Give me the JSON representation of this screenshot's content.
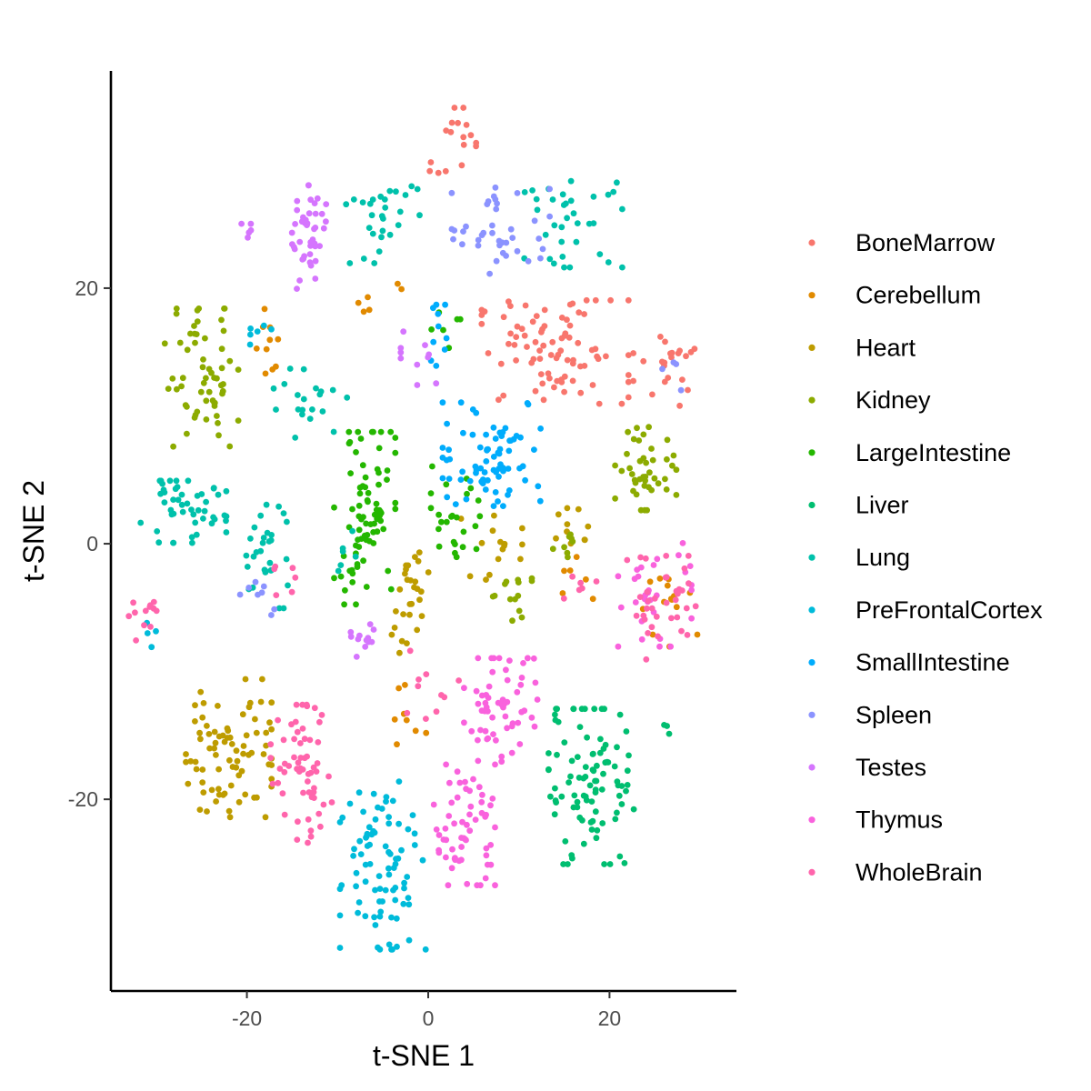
{
  "chart_data": {
    "type": "scatter",
    "title": "",
    "xlabel": "t-SNE 1",
    "ylabel": "t-SNE 2",
    "xlim": [
      -35,
      34
    ],
    "ylim": [
      -35,
      37
    ],
    "xticks": [
      -20,
      0,
      20
    ],
    "yticks": [
      -20,
      0,
      20
    ],
    "xtick_labels": [
      "-20",
      "0",
      "20"
    ],
    "ytick_labels": [
      "-20",
      "0",
      "20"
    ],
    "grid": false,
    "legend_position": "right",
    "series": [
      {
        "name": "BoneMarrow",
        "color": "#F8766D",
        "clusters": [
          {
            "cx": 14,
            "cy": 15,
            "sx": 6,
            "sy": 3,
            "n": 85
          },
          {
            "cx": 26,
            "cy": 13.5,
            "sx": 2.5,
            "sy": 2,
            "n": 22
          },
          {
            "cx": 4,
            "cy": 32.5,
            "sx": 1.5,
            "sy": 1.2,
            "n": 12
          },
          {
            "cx": 1,
            "cy": 29,
            "sx": 2,
            "sy": 1.5,
            "n": 5
          }
        ]
      },
      {
        "name": "Cerebellum",
        "color": "#E18A00",
        "clusters": [
          {
            "cx": -17,
            "cy": 16,
            "sx": 1.5,
            "sy": 2,
            "n": 10
          },
          {
            "cx": -5,
            "cy": 19,
            "sx": 2,
            "sy": 1.5,
            "n": 6
          },
          {
            "cx": 27,
            "cy": -4,
            "sx": 2.5,
            "sy": 3,
            "n": 14
          },
          {
            "cx": 16,
            "cy": -3,
            "sx": 2,
            "sy": 1.5,
            "n": 6
          },
          {
            "cx": -2,
            "cy": -13,
            "sx": 2,
            "sy": 2,
            "n": 8
          }
        ]
      },
      {
        "name": "Heart",
        "color": "#BE9C00",
        "clusters": [
          {
            "cx": -22,
            "cy": -16,
            "sx": 3.5,
            "sy": 4,
            "n": 80
          },
          {
            "cx": -2,
            "cy": -4.5,
            "sx": 1.5,
            "sy": 3,
            "n": 28
          },
          {
            "cx": 7,
            "cy": -0.5,
            "sx": 2.5,
            "sy": 2,
            "n": 15
          },
          {
            "cx": 16,
            "cy": 1.5,
            "sx": 1.5,
            "sy": 1.5,
            "n": 10
          }
        ]
      },
      {
        "name": "Kidney",
        "color": "#8CAB00",
        "clusters": [
          {
            "cx": -25,
            "cy": 13,
            "sx": 3,
            "sy": 4,
            "n": 60
          },
          {
            "cx": 24,
            "cy": 6,
            "sx": 2.5,
            "sy": 2.5,
            "n": 42
          },
          {
            "cx": 9,
            "cy": -4,
            "sx": 1.8,
            "sy": 1.5,
            "n": 14
          },
          {
            "cx": 15,
            "cy": 0,
            "sx": 1.2,
            "sy": 1.2,
            "n": 8
          }
        ]
      },
      {
        "name": "LargeIntestine",
        "color": "#24B700",
        "clusters": [
          {
            "cx": -7,
            "cy": 2,
            "sx": 2.5,
            "sy": 5,
            "n": 80
          },
          {
            "cx": 3,
            "cy": 2,
            "sx": 2,
            "sy": 3,
            "n": 25
          },
          {
            "cx": 2,
            "cy": 17,
            "sx": 1.5,
            "sy": 2,
            "n": 6
          }
        ]
      },
      {
        "name": "Liver",
        "color": "#00BE70",
        "clusters": [
          {
            "cx": 18,
            "cy": -19,
            "sx": 3.5,
            "sy": 4.5,
            "n": 95
          },
          {
            "cx": 26.5,
            "cy": -14.5,
            "sx": 0.6,
            "sy": 0.6,
            "n": 3
          }
        ]
      },
      {
        "name": "Lung",
        "color": "#00C1AB",
        "clusters": [
          {
            "cx": -27,
            "cy": 2.5,
            "sx": 3.5,
            "sy": 1.8,
            "n": 50
          },
          {
            "cx": -18,
            "cy": -1,
            "sx": 2,
            "sy": 3,
            "n": 30
          },
          {
            "cx": -5,
            "cy": 26,
            "sx": 3,
            "sy": 3,
            "n": 28
          },
          {
            "cx": 16,
            "cy": 25,
            "sx": 4,
            "sy": 2.5,
            "n": 35
          },
          {
            "cx": -13,
            "cy": 11,
            "sx": 3,
            "sy": 2,
            "n": 20
          },
          {
            "cx": -9,
            "cy": -1,
            "sx": 1.5,
            "sy": 1.5,
            "n": 6
          }
        ]
      },
      {
        "name": "PreFrontalCortex",
        "color": "#00BBDA",
        "clusters": [
          {
            "cx": -5,
            "cy": -25,
            "sx": 3.5,
            "sy": 5,
            "n": 85
          },
          {
            "cx": -19,
            "cy": 17,
            "sx": 1.5,
            "sy": 1.5,
            "n": 6
          },
          {
            "cx": -31,
            "cy": -7,
            "sx": 1,
            "sy": 1,
            "n": 4
          }
        ]
      },
      {
        "name": "SmallIntestine",
        "color": "#00ACFC",
        "clusters": [
          {
            "cx": 7,
            "cy": 7,
            "sx": 4,
            "sy": 3,
            "n": 75
          },
          {
            "cx": 1.5,
            "cy": 16,
            "sx": 1.5,
            "sy": 2,
            "n": 10
          }
        ]
      },
      {
        "name": "Spleen",
        "color": "#8B93FF",
        "clusters": [
          {
            "cx": 8,
            "cy": 24.5,
            "sx": 4,
            "sy": 2.5,
            "n": 40
          },
          {
            "cx": -19,
            "cy": -4,
            "sx": 1.5,
            "sy": 1.5,
            "n": 8
          },
          {
            "cx": 27,
            "cy": 13,
            "sx": 1.5,
            "sy": 1,
            "n": 4
          }
        ]
      },
      {
        "name": "Testes",
        "color": "#D575FE",
        "clusters": [
          {
            "cx": -13,
            "cy": 24,
            "sx": 1.5,
            "sy": 3,
            "n": 45
          },
          {
            "cx": -20,
            "cy": 24.5,
            "sx": 0.8,
            "sy": 0.4,
            "n": 5
          },
          {
            "cx": -7,
            "cy": -7.5,
            "sx": 1.5,
            "sy": 1,
            "n": 12
          },
          {
            "cx": -1,
            "cy": 14,
            "sx": 1.5,
            "sy": 2,
            "n": 10
          }
        ]
      },
      {
        "name": "Thymus",
        "color": "#F962DD",
        "clusters": [
          {
            "cx": 4,
            "cy": -22,
            "sx": 2.5,
            "sy": 3.5,
            "n": 60
          },
          {
            "cx": 8,
            "cy": -13,
            "sx": 3,
            "sy": 3,
            "n": 60
          },
          {
            "cx": 25,
            "cy": -4,
            "sx": 3,
            "sy": 3,
            "n": 30
          }
        ]
      },
      {
        "name": "WholeBrain",
        "color": "#FF65AC",
        "clusters": [
          {
            "cx": -14,
            "cy": -18,
            "sx": 2.5,
            "sy": 4,
            "n": 60
          },
          {
            "cx": 26,
            "cy": -5,
            "sx": 3,
            "sy": 3,
            "n": 35
          },
          {
            "cx": -31,
            "cy": -6,
            "sx": 1.5,
            "sy": 1.5,
            "n": 12
          },
          {
            "cx": 0,
            "cy": -11,
            "sx": 2.5,
            "sy": 2,
            "n": 10
          },
          {
            "cx": 17,
            "cy": -3,
            "sx": 1.5,
            "sy": 1,
            "n": 6
          },
          {
            "cx": -16,
            "cy": -3,
            "sx": 1.5,
            "sy": 2,
            "n": 6
          }
        ]
      }
    ]
  }
}
